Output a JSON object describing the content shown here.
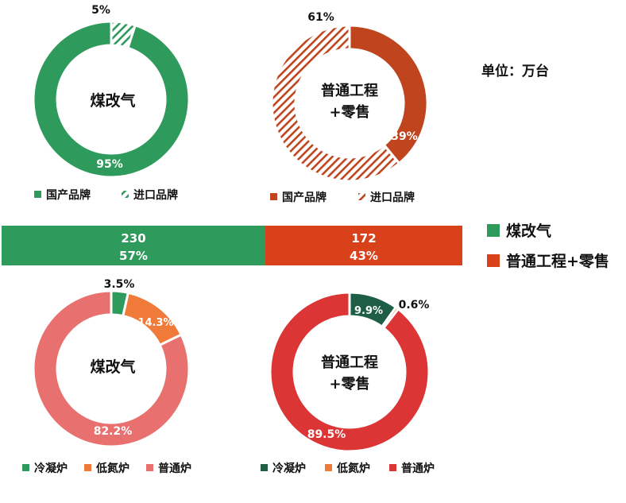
{
  "unit_note": "单位：万台",
  "colors": {
    "green": "#2E9A5B",
    "red_brown": "#C0451F",
    "bar_orange": "#D9411A",
    "pale_red": "#E8706E",
    "orange": "#F07A3A",
    "dark_green": "#1E5E45",
    "red": "#DC3535"
  },
  "chart_data": [
    {
      "type": "pie",
      "title": "煤改气",
      "legend": [
        "国产品牌",
        "进口品牌"
      ],
      "slices": [
        {
          "name": "进口品牌",
          "value": 5,
          "label": "5%",
          "color": "#2E9A5B",
          "hatched": true
        },
        {
          "name": "国产品牌",
          "value": 95,
          "label": "95%",
          "color": "#2E9A5B",
          "hatched": false
        }
      ]
    },
    {
      "type": "pie",
      "title": "普通工程+零售",
      "legend": [
        "国产品牌",
        "进口品牌"
      ],
      "slices": [
        {
          "name": "国产品牌",
          "value": 39,
          "label": "39%",
          "color": "#C0451F",
          "hatched": false
        },
        {
          "name": "进口品牌",
          "value": 61,
          "label": "61%",
          "color": "#C0451F",
          "hatched": true
        }
      ]
    },
    {
      "type": "bar",
      "stacked": true,
      "orientation": "horizontal",
      "segments": [
        {
          "name": "煤改气",
          "value": 230,
          "percent": "57%",
          "color": "#2E9A5B"
        },
        {
          "name": "普通工程+零售",
          "value": 172,
          "percent": "43%",
          "color": "#D9411A"
        }
      ],
      "legend": [
        "煤改气",
        "普通工程+零售"
      ]
    },
    {
      "type": "pie",
      "title": "煤改气",
      "legend": [
        "冷凝炉",
        "低氮炉",
        "普通炉"
      ],
      "slices": [
        {
          "name": "冷凝炉",
          "value": 3.5,
          "label": "3.5%",
          "color": "#2E9A5B"
        },
        {
          "name": "低氮炉",
          "value": 14.3,
          "label": "14.3%",
          "color": "#F07A3A"
        },
        {
          "name": "普通炉",
          "value": 82.2,
          "label": "82.2%",
          "color": "#E8706E"
        }
      ]
    },
    {
      "type": "pie",
      "title": "普通工程+零售",
      "legend": [
        "冷凝炉",
        "低氮炉",
        "普通炉"
      ],
      "slices": [
        {
          "name": "冷凝炉",
          "value": 9.9,
          "label": "9.9%",
          "color": "#1E5E45"
        },
        {
          "name": "低氮炉",
          "value": 0.6,
          "label": "0.6%",
          "color": "#F07A3A"
        },
        {
          "name": "普通炉",
          "value": 89.5,
          "label": "89.5%",
          "color": "#DC3535"
        }
      ]
    }
  ]
}
